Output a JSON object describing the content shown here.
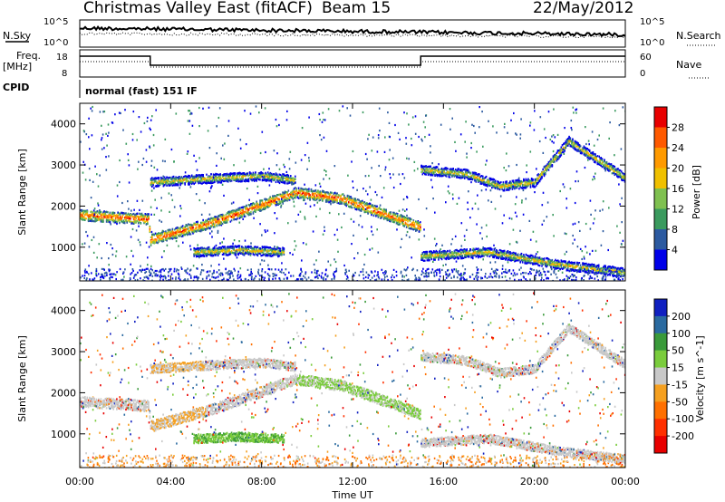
{
  "header": {
    "station": "Christmas Valley East (fitACF)",
    "beam": "Beam 15",
    "date": "22/May/2012"
  },
  "top_panels": {
    "nsky_label": "N.Sky",
    "nsearch_label": "N.Search",
    "nsky_ticks": [
      "10^5",
      "10^0"
    ],
    "nsky_right_ticks": [
      "10^5",
      "10^0"
    ],
    "freq_label": "Freq.",
    "freq_unit": "[MHz]",
    "freq_ticks": [
      "18",
      "8"
    ],
    "nave_label": "Nave",
    "nave_ticks": [
      "60",
      "0"
    ],
    "cpid_label": "CPID",
    "cpid_text": "normal (fast) 151 IF"
  },
  "time_axis": {
    "label": "Time UT",
    "ticks": [
      "00:00",
      "04:00",
      "08:00",
      "12:00",
      "16:00",
      "20:00",
      "00:00"
    ]
  },
  "chart_data": [
    {
      "type": "heatmap",
      "name": "power",
      "ylabel": "Slant Range [km]",
      "yticks": [
        1000,
        2000,
        3000,
        4000
      ],
      "ylim": [
        180,
        4500
      ],
      "xlim_hours": [
        0,
        24
      ],
      "colorbar": {
        "label": "Power [dB]",
        "ticks": [
          "28",
          "24",
          "20",
          "16",
          "12",
          "8",
          "4"
        ],
        "colors": [
          "#e80000",
          "#ff5a00",
          "#ff9a00",
          "#f0c000",
          "#7fc050",
          "#3a9a5e",
          "#2c5aa0",
          "#0000e8"
        ]
      },
      "features": [
        {
          "feature": "main_echo",
          "hours": [
            0,
            3.0,
            3.1,
            6.0,
            9.5,
            11.5,
            13.0,
            15.0
          ],
          "range_km": [
            1800,
            1700,
            1200,
            1650,
            2350,
            2200,
            1900,
            1500
          ]
        },
        {
          "feature": "upper_band",
          "hours": [
            3.1,
            6.0,
            8.0,
            9.5
          ],
          "range_km": [
            2600,
            2700,
            2750,
            2650
          ]
        },
        {
          "feature": "lower_band",
          "hours": [
            5.0,
            7.0,
            9.0
          ],
          "range_km": [
            900,
            950,
            900
          ]
        },
        {
          "feature": "late_upper",
          "hours": [
            15.0,
            17.0,
            18.5,
            20.0,
            21.5,
            24.0
          ],
          "range_km": [
            2900,
            2800,
            2500,
            2600,
            3600,
            2700
          ]
        },
        {
          "feature": "late_lower",
          "hours": [
            15.0,
            18.0,
            21.0,
            24.0
          ],
          "range_km": [
            800,
            900,
            600,
            400
          ]
        }
      ]
    },
    {
      "type": "heatmap",
      "name": "velocity",
      "ylabel": "Slant Range [km]",
      "yticks": [
        1000,
        2000,
        3000,
        4000
      ],
      "ylim": [
        180,
        4500
      ],
      "xlim_hours": [
        0,
        24
      ],
      "colorbar": {
        "label": "Velocity [m s^-1]",
        "ticks": [
          "200",
          "100",
          "50",
          "15",
          "-15",
          "-50",
          "-100",
          "-200"
        ],
        "colors": [
          "#1020c0",
          "#2a6aa0",
          "#3a9a3a",
          "#7acc3c",
          "#c8c8c8",
          "#f5a020",
          "#ff7000",
          "#ff3000",
          "#e80000"
        ]
      }
    }
  ]
}
